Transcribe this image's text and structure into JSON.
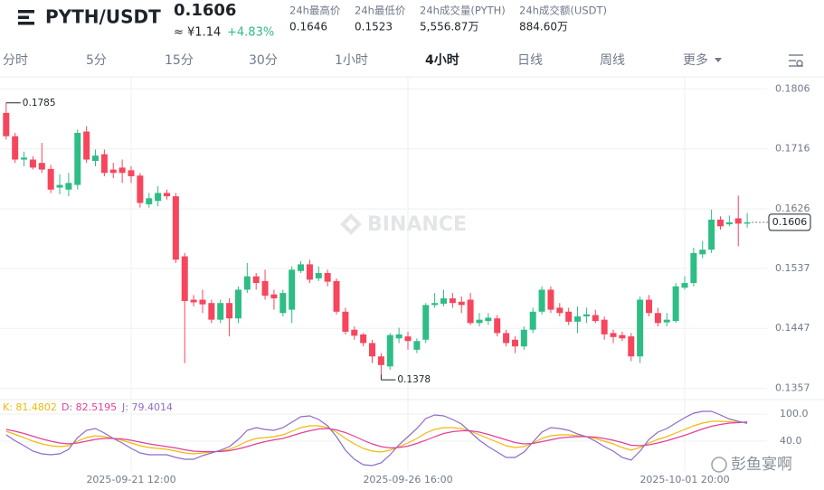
{
  "header": {
    "symbol": "PYTH/USDT",
    "price": "0.1606",
    "cny": "≈ ¥1.14",
    "change": "+4.83%",
    "stats": [
      {
        "label": "24h最高价",
        "value": "0.1646"
      },
      {
        "label": "24h最低价",
        "value": "0.1523"
      },
      {
        "label": "24h成交量(PYTH)",
        "value": "5,556.87万"
      },
      {
        "label": "24h成交额(USDT)",
        "value": "884.60万"
      }
    ]
  },
  "tabs": [
    {
      "text": "分时"
    },
    {
      "text": "5分"
    },
    {
      "text": "15分"
    },
    {
      "text": "30分"
    },
    {
      "text": "1小时"
    },
    {
      "text": "4小时",
      "active": true
    },
    {
      "text": "日线"
    },
    {
      "text": "周线"
    },
    {
      "text": "更多"
    }
  ],
  "chart_data": {
    "type": "candlestick",
    "watermark": "BINANCE",
    "up_color": "#2ebd85",
    "down_color": "#f6465d",
    "grid": true,
    "categories": [
      null,
      null,
      null,
      null,
      null,
      null,
      null,
      null,
      null,
      null,
      null,
      null,
      null,
      null,
      "2025-09-21 12:00",
      null,
      null,
      null,
      null,
      null,
      null,
      null,
      null,
      null,
      null,
      null,
      null,
      null,
      null,
      null,
      null,
      null,
      null,
      null,
      null,
      null,
      null,
      null,
      null,
      null,
      null,
      null,
      null,
      null,
      null,
      "2025-09-26 16:00",
      null,
      null,
      null,
      null,
      null,
      null,
      null,
      null,
      null,
      null,
      null,
      null,
      null,
      null,
      null,
      null,
      null,
      null,
      null,
      null,
      null,
      null,
      null,
      null,
      null,
      null,
      null,
      null,
      null,
      null,
      "2025-10-01 20:00",
      null,
      null,
      null,
      null,
      null,
      null,
      null
    ],
    "open": [
      0.177,
      0.1735,
      0.17,
      0.17,
      0.1695,
      0.1686,
      0.1658,
      0.1655,
      0.1662,
      0.1742,
      0.1698,
      0.1708,
      0.1685,
      0.1688,
      0.1684,
      0.1676,
      0.1633,
      0.1638,
      0.165,
      0.1645,
      0.1555,
      0.149,
      0.149,
      0.1485,
      0.146,
      0.1485,
      0.1462,
      0.1505,
      0.1525,
      0.1518,
      0.1498,
      0.147,
      0.1475,
      0.1533,
      0.1543,
      0.1522,
      0.153,
      0.1518,
      0.1472,
      0.1445,
      0.1438,
      0.1425,
      0.1405,
      0.139,
      0.1432,
      0.1435,
      0.1415,
      0.143,
      0.1482,
      0.1484,
      0.1492,
      0.1487,
      0.149,
      0.1455,
      0.1458,
      0.1462,
      0.144,
      0.143,
      0.142,
      0.1445,
      0.1472,
      0.1505,
      0.1478,
      0.1472,
      0.1457,
      0.1465,
      0.1467,
      0.146,
      0.144,
      0.1437,
      0.1435,
      0.1405,
      0.149,
      0.147,
      0.1456,
      0.1458,
      0.1508,
      0.1515,
      0.1558,
      0.1565,
      0.161,
      0.1603,
      0.1612,
      0.1604
    ],
    "high": [
      0.1785,
      0.174,
      0.1712,
      0.1705,
      0.1725,
      0.1692,
      0.1678,
      0.168,
      0.1745,
      0.175,
      0.1715,
      0.1715,
      0.1695,
      0.17,
      0.169,
      0.168,
      0.165,
      0.166,
      0.1655,
      0.165,
      0.156,
      0.1497,
      0.1505,
      0.149,
      0.149,
      0.1492,
      0.151,
      0.1545,
      0.153,
      0.1535,
      0.1505,
      0.1505,
      0.154,
      0.1548,
      0.155,
      0.154,
      0.1535,
      0.1522,
      0.1478,
      0.145,
      0.144,
      0.143,
      0.141,
      0.144,
      0.1448,
      0.1442,
      0.1432,
      0.1485,
      0.15,
      0.1505,
      0.15,
      0.1495,
      0.15,
      0.147,
      0.147,
      0.1467,
      0.1445,
      0.1435,
      0.145,
      0.1478,
      0.151,
      0.151,
      0.1485,
      0.1478,
      0.148,
      0.1478,
      0.1475,
      0.1465,
      0.1445,
      0.1442,
      0.144,
      0.1495,
      0.1497,
      0.1478,
      0.147,
      0.1515,
      0.1525,
      0.1568,
      0.1578,
      0.1625,
      0.1615,
      0.1616,
      0.1646,
      0.162
    ],
    "low": [
      0.173,
      0.1695,
      0.169,
      0.1685,
      0.168,
      0.165,
      0.1648,
      0.1645,
      0.1655,
      0.1695,
      0.169,
      0.1675,
      0.1672,
      0.1665,
      0.1665,
      0.1628,
      0.1628,
      0.163,
      0.164,
      0.1545,
      0.1395,
      0.148,
      0.147,
      0.1455,
      0.1455,
      0.1435,
      0.1455,
      0.15,
      0.1505,
      0.149,
      0.1475,
      0.1465,
      0.1455,
      0.153,
      0.1515,
      0.1518,
      0.151,
      0.1468,
      0.1438,
      0.143,
      0.142,
      0.1395,
      0.1378,
      0.1385,
      0.1425,
      0.1415,
      0.141,
      0.1425,
      0.1478,
      0.148,
      0.1478,
      0.147,
      0.1452,
      0.145,
      0.1452,
      0.1435,
      0.142,
      0.141,
      0.1415,
      0.144,
      0.1468,
      0.147,
      0.1465,
      0.1452,
      0.144,
      0.1455,
      0.1455,
      0.143,
      0.1425,
      0.1428,
      0.1398,
      0.1395,
      0.1465,
      0.145,
      0.145,
      0.1455,
      0.1505,
      0.151,
      0.1552,
      0.156,
      0.1595,
      0.16,
      0.157,
      0.1598
    ],
    "close": [
      0.1735,
      0.17,
      0.1703,
      0.1688,
      0.1685,
      0.1655,
      0.1662,
      0.1665,
      0.174,
      0.17,
      0.1706,
      0.168,
      0.168,
      0.168,
      0.1675,
      0.1635,
      0.1642,
      0.165,
      0.1645,
      0.155,
      0.1488,
      0.1486,
      0.1483,
      0.146,
      0.1485,
      0.1462,
      0.1505,
      0.1525,
      0.1515,
      0.1496,
      0.1492,
      0.15,
      0.1535,
      0.1543,
      0.152,
      0.153,
      0.1517,
      0.1472,
      0.1442,
      0.1436,
      0.1425,
      0.1405,
      0.1392,
      0.1437,
      0.1438,
      0.1428,
      0.1428,
      0.1482,
      0.1485,
      0.1492,
      0.1485,
      0.1482,
      0.1455,
      0.146,
      0.1463,
      0.144,
      0.1425,
      0.142,
      0.1445,
      0.1472,
      0.1505,
      0.1475,
      0.147,
      0.1457,
      0.1465,
      0.1468,
      0.1458,
      0.1438,
      0.1434,
      0.1432,
      0.1405,
      0.149,
      0.147,
      0.1455,
      0.146,
      0.151,
      0.1515,
      0.156,
      0.1565,
      0.161,
      0.16,
      0.1606,
      0.1604,
      0.1606
    ],
    "ylim": [
      0.1343,
      0.1824
    ],
    "yticks": [
      0.1806,
      0.1716,
      0.1626,
      0.1537,
      0.1447,
      0.1357
    ],
    "indicator": {
      "ylim": [
        -26,
        126
      ],
      "yticks": [
        {
          "value": 100,
          "label": "100.0"
        },
        {
          "value": 40,
          "label": "40.0"
        }
      ],
      "series": [
        {
          "label": "K: 81.4802",
          "color": "#f0b90b",
          "values": [
            62,
            55,
            48,
            40,
            34,
            30,
            28,
            30,
            40,
            48,
            52,
            50,
            46,
            42,
            36,
            30,
            26,
            24,
            22,
            18,
            14,
            12,
            14,
            16,
            18,
            22,
            30,
            40,
            46,
            48,
            50,
            54,
            62,
            70,
            74,
            74,
            70,
            60,
            46,
            34,
            24,
            18,
            16,
            20,
            28,
            36,
            46,
            58,
            66,
            70,
            70,
            68,
            62,
            54,
            46,
            38,
            30,
            26,
            28,
            36,
            46,
            52,
            54,
            54,
            52,
            50,
            46,
            40,
            34,
            26,
            20,
            26,
            36,
            44,
            50,
            58,
            66,
            74,
            80,
            84,
            84,
            83,
            82,
            81.4802
          ]
        },
        {
          "label": "D: 82.5195",
          "color": "#e0409a",
          "values": [
            66,
            62,
            57,
            51,
            45,
            40,
            36,
            34,
            36,
            40,
            44,
            46,
            46,
            45,
            42,
            38,
            34,
            31,
            28,
            25,
            21,
            18,
            17,
            17,
            17,
            19,
            23,
            28,
            34,
            39,
            43,
            46,
            52,
            58,
            63,
            67,
            68,
            65,
            59,
            51,
            42,
            34,
            28,
            25,
            26,
            29,
            35,
            42,
            50,
            57,
            61,
            63,
            63,
            60,
            55,
            49,
            43,
            37,
            34,
            35,
            39,
            43,
            47,
            49,
            50,
            50,
            49,
            46,
            42,
            37,
            31,
            30,
            32,
            36,
            41,
            47,
            53,
            60,
            67,
            73,
            77,
            80,
            81,
            82.5195
          ]
        },
        {
          "label": "J: 79.4014",
          "color": "#8e6bc8",
          "values": [
            54,
            41,
            30,
            18,
            12,
            10,
            12,
            22,
            48,
            64,
            68,
            58,
            46,
            36,
            24,
            14,
            10,
            10,
            10,
            4,
            0,
            0,
            8,
            14,
            20,
            28,
            44,
            64,
            70,
            66,
            64,
            70,
            82,
            94,
            96,
            88,
            74,
            50,
            20,
            0,
            -12,
            -14,
            -8,
            10,
            32,
            50,
            68,
            90,
            98,
            96,
            88,
            78,
            60,
            42,
            28,
            16,
            4,
            4,
            16,
            38,
            60,
            70,
            68,
            64,
            56,
            50,
            40,
            28,
            18,
            4,
            -2,
            18,
            44,
            60,
            68,
            80,
            92,
            102,
            106,
            106,
            98,
            89,
            84,
            79.4014
          ]
        }
      ]
    },
    "credit": "彭鱼宴啊"
  }
}
